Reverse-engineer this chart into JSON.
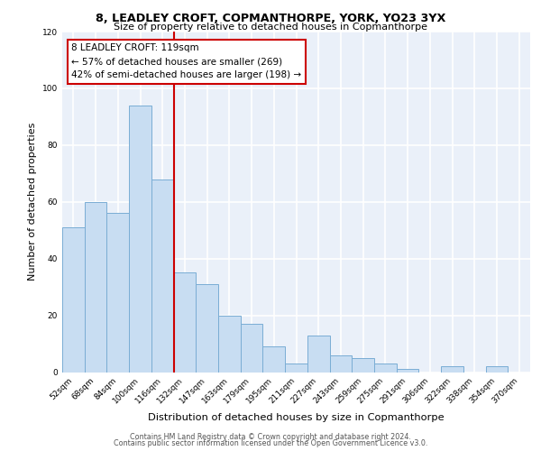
{
  "title1": "8, LEADLEY CROFT, COPMANTHORPE, YORK, YO23 3YX",
  "title2": "Size of property relative to detached houses in Copmanthorpe",
  "xlabel": "Distribution of detached houses by size in Copmanthorpe",
  "ylabel": "Number of detached properties",
  "categories": [
    "52sqm",
    "68sqm",
    "84sqm",
    "100sqm",
    "116sqm",
    "132sqm",
    "147sqm",
    "163sqm",
    "179sqm",
    "195sqm",
    "211sqm",
    "227sqm",
    "243sqm",
    "259sqm",
    "275sqm",
    "291sqm",
    "306sqm",
    "322sqm",
    "338sqm",
    "354sqm",
    "370sqm"
  ],
  "values": [
    51,
    60,
    56,
    94,
    68,
    35,
    31,
    20,
    17,
    9,
    3,
    13,
    6,
    5,
    3,
    1,
    0,
    2,
    0,
    2,
    0
  ],
  "bar_color": "#c8ddf2",
  "bar_edge_color": "#7aadd4",
  "vline_x_index": 4.5,
  "vline_color": "#cc0000",
  "annotation_line1": "8 LEADLEY CROFT: 119sqm",
  "annotation_line2": "← 57% of detached houses are smaller (269)",
  "annotation_line3": "42% of semi-detached houses are larger (198) →",
  "box_edge_color": "#cc0000",
  "ylim": [
    0,
    120
  ],
  "yticks": [
    0,
    20,
    40,
    60,
    80,
    100,
    120
  ],
  "bg_color": "#eaf0f9",
  "grid_color": "white",
  "footer1": "Contains HM Land Registry data © Crown copyright and database right 2024.",
  "footer2": "Contains public sector information licensed under the Open Government Licence v3.0."
}
